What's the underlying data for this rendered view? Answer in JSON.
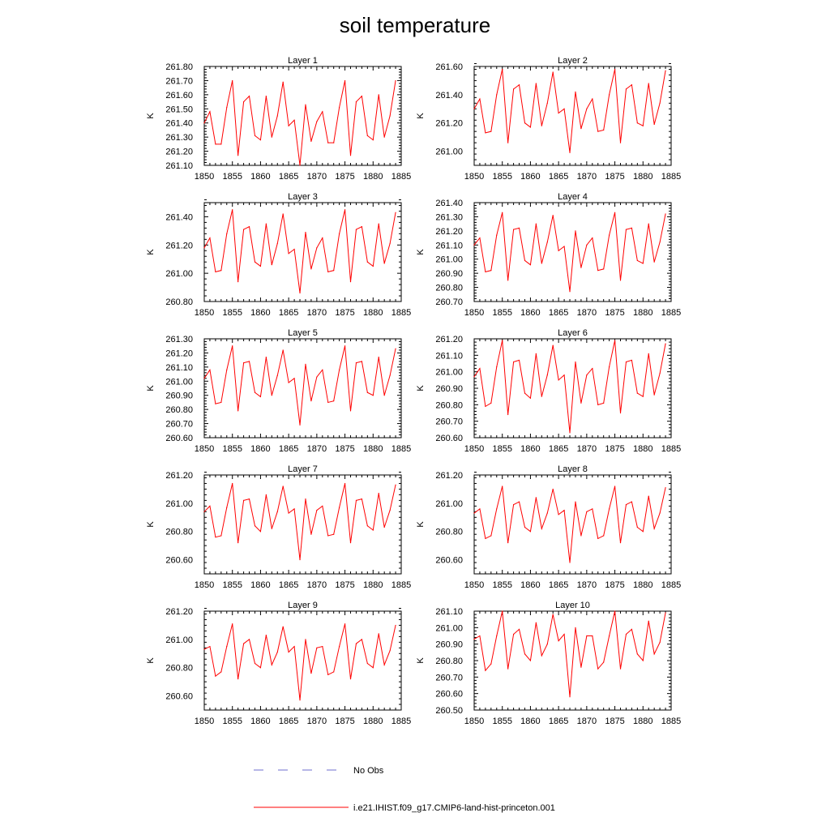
{
  "title": "soil temperature",
  "colors": {
    "series": "#ff0000",
    "obs": "#6f6fcf"
  },
  "legend": {
    "placement": "bottom",
    "entries": [
      {
        "label": "No Obs",
        "style": "dashed",
        "color": "#6f6fcf"
      },
      {
        "label": "i.e21.IHIST.f09_g17.CMIP6-land-hist-princeton.001",
        "style": "solid",
        "color": "#ff0000"
      }
    ]
  },
  "chart_data": [
    {
      "type": "line",
      "title": "Layer 1",
      "ylabel": "K",
      "xlim": [
        1850,
        1885
      ],
      "ylim": [
        261.1,
        261.8
      ],
      "xticks": [
        "1850",
        "1855",
        "1860",
        "1865",
        "1870",
        "1875",
        "1880",
        "1885"
      ],
      "yticks": [
        "261.10",
        "261.20",
        "261.30",
        "261.40",
        "261.50",
        "261.60",
        "261.70",
        "261.80"
      ],
      "x_start": 1850,
      "series": [
        {
          "values": [
            261.4,
            261.48,
            261.25,
            261.25,
            261.51,
            261.7,
            261.17,
            261.55,
            261.59,
            261.31,
            261.28,
            261.59,
            261.3,
            261.45,
            261.69,
            261.38,
            261.42,
            261.1,
            261.53,
            261.27,
            261.41,
            261.48,
            261.26,
            261.26,
            261.51,
            261.7,
            261.17,
            261.55,
            261.59,
            261.31,
            261.28,
            261.6,
            261.3,
            261.45,
            261.7
          ]
        }
      ]
    },
    {
      "type": "line",
      "title": "Layer 2",
      "ylabel": "K",
      "xlim": [
        1850,
        1885
      ],
      "ylim": [
        260.9,
        261.6
      ],
      "xticks": [
        "1850",
        "1855",
        "1860",
        "1865",
        "1870",
        "1875",
        "1880",
        "1885"
      ],
      "yticks": [
        "261.00",
        "261.20",
        "261.40",
        "261.60"
      ],
      "x_start": 1850,
      "series": [
        {
          "values": [
            261.3,
            261.37,
            261.13,
            261.14,
            261.4,
            261.58,
            261.06,
            261.44,
            261.47,
            261.2,
            261.17,
            261.48,
            261.18,
            261.34,
            261.56,
            261.27,
            261.3,
            260.99,
            261.42,
            261.16,
            261.3,
            261.37,
            261.14,
            261.15,
            261.4,
            261.58,
            261.06,
            261.44,
            261.47,
            261.2,
            261.18,
            261.48,
            261.19,
            261.34,
            261.57
          ]
        }
      ]
    },
    {
      "type": "line",
      "title": "Layer 3",
      "ylabel": "K",
      "xlim": [
        1850,
        1885
      ],
      "ylim": [
        260.8,
        261.5
      ],
      "xticks": [
        "1850",
        "1855",
        "1860",
        "1865",
        "1870",
        "1875",
        "1880",
        "1885"
      ],
      "yticks": [
        "260.80",
        "261.00",
        "261.20",
        "261.40"
      ],
      "x_start": 1850,
      "series": [
        {
          "values": [
            261.18,
            261.25,
            261.01,
            261.02,
            261.28,
            261.45,
            260.94,
            261.31,
            261.33,
            261.08,
            261.05,
            261.35,
            261.06,
            261.21,
            261.42,
            261.14,
            261.17,
            260.86,
            261.29,
            261.03,
            261.18,
            261.25,
            261.01,
            261.02,
            261.28,
            261.45,
            260.94,
            261.31,
            261.33,
            261.08,
            261.05,
            261.35,
            261.07,
            261.21,
            261.43
          ]
        }
      ]
    },
    {
      "type": "line",
      "title": "Layer 4",
      "ylabel": "K",
      "xlim": [
        1850,
        1885
      ],
      "ylim": [
        260.7,
        261.4
      ],
      "xticks": [
        "1850",
        "1855",
        "1860",
        "1865",
        "1870",
        "1875",
        "1880",
        "1885"
      ],
      "yticks": [
        "260.70",
        "260.80",
        "260.90",
        "261.00",
        "261.10",
        "261.20",
        "261.30",
        "261.40"
      ],
      "x_start": 1850,
      "series": [
        {
          "values": [
            261.1,
            261.15,
            260.91,
            260.92,
            261.17,
            261.33,
            260.85,
            261.21,
            261.22,
            260.99,
            260.96,
            261.25,
            260.97,
            261.12,
            261.31,
            261.06,
            261.09,
            260.77,
            261.2,
            260.94,
            261.1,
            261.15,
            260.92,
            260.93,
            261.17,
            261.33,
            260.85,
            261.21,
            261.22,
            260.99,
            260.97,
            261.25,
            260.98,
            261.12,
            261.32
          ]
        }
      ]
    },
    {
      "type": "line",
      "title": "Layer 5",
      "ylabel": "K",
      "xlim": [
        1850,
        1885
      ],
      "ylim": [
        260.6,
        261.3
      ],
      "xticks": [
        "1850",
        "1855",
        "1860",
        "1865",
        "1870",
        "1875",
        "1880",
        "1885"
      ],
      "yticks": [
        "260.60",
        "260.70",
        "260.80",
        "260.90",
        "261.00",
        "261.10",
        "261.20",
        "261.30"
      ],
      "x_start": 1850,
      "series": [
        {
          "values": [
            261.02,
            261.08,
            260.84,
            260.85,
            261.08,
            261.25,
            260.79,
            261.13,
            261.14,
            260.92,
            260.89,
            261.17,
            260.9,
            261.04,
            261.22,
            260.99,
            261.02,
            260.69,
            261.12,
            260.86,
            261.03,
            261.08,
            260.85,
            260.86,
            261.08,
            261.25,
            260.79,
            261.13,
            261.14,
            260.92,
            260.9,
            261.17,
            260.9,
            261.04,
            261.23
          ]
        }
      ]
    },
    {
      "type": "line",
      "title": "Layer 6",
      "ylabel": "K",
      "xlim": [
        1850,
        1885
      ],
      "ylim": [
        260.6,
        261.2
      ],
      "xticks": [
        "1850",
        "1855",
        "1860",
        "1865",
        "1870",
        "1875",
        "1880",
        "1885"
      ],
      "yticks": [
        "260.60",
        "260.70",
        "260.80",
        "260.90",
        "261.00",
        "261.10",
        "261.20"
      ],
      "x_start": 1850,
      "series": [
        {
          "values": [
            260.97,
            261.02,
            260.79,
            260.81,
            261.03,
            261.19,
            260.74,
            261.06,
            261.07,
            260.87,
            260.84,
            261.11,
            260.85,
            260.98,
            261.16,
            260.95,
            260.98,
            260.63,
            261.06,
            260.81,
            260.98,
            261.02,
            260.8,
            260.81,
            261.03,
            261.19,
            260.75,
            261.06,
            261.07,
            260.87,
            260.85,
            261.11,
            260.86,
            260.99,
            261.17
          ]
        }
      ]
    },
    {
      "type": "line",
      "title": "Layer 7",
      "ylabel": "K",
      "xlim": [
        1850,
        1885
      ],
      "ylim": [
        260.5,
        261.2
      ],
      "xticks": [
        "1850",
        "1855",
        "1860",
        "1865",
        "1870",
        "1875",
        "1880",
        "1885"
      ],
      "yticks": [
        "260.60",
        "260.80",
        "261.00",
        "261.20"
      ],
      "x_start": 1850,
      "series": [
        {
          "values": [
            260.94,
            260.98,
            260.76,
            260.77,
            260.97,
            261.14,
            260.72,
            261.02,
            261.03,
            260.84,
            260.8,
            261.06,
            260.82,
            260.94,
            261.12,
            260.93,
            260.96,
            260.6,
            261.03,
            260.78,
            260.95,
            260.98,
            260.77,
            260.78,
            260.97,
            261.14,
            260.72,
            261.02,
            261.03,
            260.84,
            260.81,
            261.07,
            260.83,
            260.95,
            261.13
          ]
        }
      ]
    },
    {
      "type": "line",
      "title": "Layer 8",
      "ylabel": "K",
      "xlim": [
        1850,
        1885
      ],
      "ylim": [
        260.5,
        261.2
      ],
      "xticks": [
        "1850",
        "1855",
        "1860",
        "1865",
        "1870",
        "1875",
        "1880",
        "1885"
      ],
      "yticks": [
        "260.60",
        "260.80",
        "261.00",
        "261.20"
      ],
      "x_start": 1850,
      "series": [
        {
          "values": [
            260.93,
            260.96,
            260.75,
            260.77,
            260.96,
            261.12,
            260.72,
            260.99,
            261.01,
            260.83,
            260.8,
            261.04,
            260.82,
            260.93,
            261.1,
            260.92,
            260.95,
            260.58,
            261.01,
            260.77,
            260.94,
            260.96,
            260.75,
            260.77,
            260.96,
            261.12,
            260.72,
            260.99,
            261.01,
            260.83,
            260.8,
            261.05,
            260.82,
            260.93,
            261.11
          ]
        }
      ]
    },
    {
      "type": "line",
      "title": "Layer 9",
      "ylabel": "K",
      "xlim": [
        1850,
        1885
      ],
      "ylim": [
        260.5,
        261.2
      ],
      "xticks": [
        "1850",
        "1855",
        "1860",
        "1865",
        "1870",
        "1875",
        "1880",
        "1885"
      ],
      "yticks": [
        "260.60",
        "260.80",
        "261.00",
        "261.20"
      ],
      "x_start": 1850,
      "series": [
        {
          "values": [
            260.93,
            260.95,
            260.74,
            260.77,
            260.95,
            261.11,
            260.72,
            260.97,
            261.0,
            260.83,
            260.8,
            261.03,
            260.82,
            260.91,
            261.09,
            260.91,
            260.95,
            260.57,
            261.0,
            260.76,
            260.94,
            260.95,
            260.75,
            260.77,
            260.95,
            261.11,
            260.72,
            260.97,
            261.0,
            260.83,
            260.8,
            261.04,
            260.82,
            260.92,
            261.1
          ]
        }
      ]
    },
    {
      "type": "line",
      "title": "Layer 10",
      "ylabel": "K",
      "xlim": [
        1850,
        1885
      ],
      "ylim": [
        260.5,
        261.1
      ],
      "xticks": [
        "1850",
        "1855",
        "1860",
        "1865",
        "1870",
        "1875",
        "1880",
        "1885"
      ],
      "yticks": [
        "260.50",
        "260.60",
        "260.70",
        "260.80",
        "260.90",
        "261.00",
        "261.10"
      ],
      "x_start": 1850,
      "series": [
        {
          "values": [
            260.93,
            260.95,
            260.74,
            260.78,
            260.95,
            261.1,
            260.75,
            260.96,
            260.99,
            260.84,
            260.8,
            261.03,
            260.83,
            260.9,
            261.08,
            260.92,
            260.96,
            260.58,
            261.0,
            260.76,
            260.95,
            260.95,
            260.75,
            260.79,
            260.95,
            261.1,
            260.75,
            260.96,
            260.99,
            260.84,
            260.8,
            261.04,
            260.84,
            260.91,
            261.09
          ]
        }
      ]
    }
  ]
}
